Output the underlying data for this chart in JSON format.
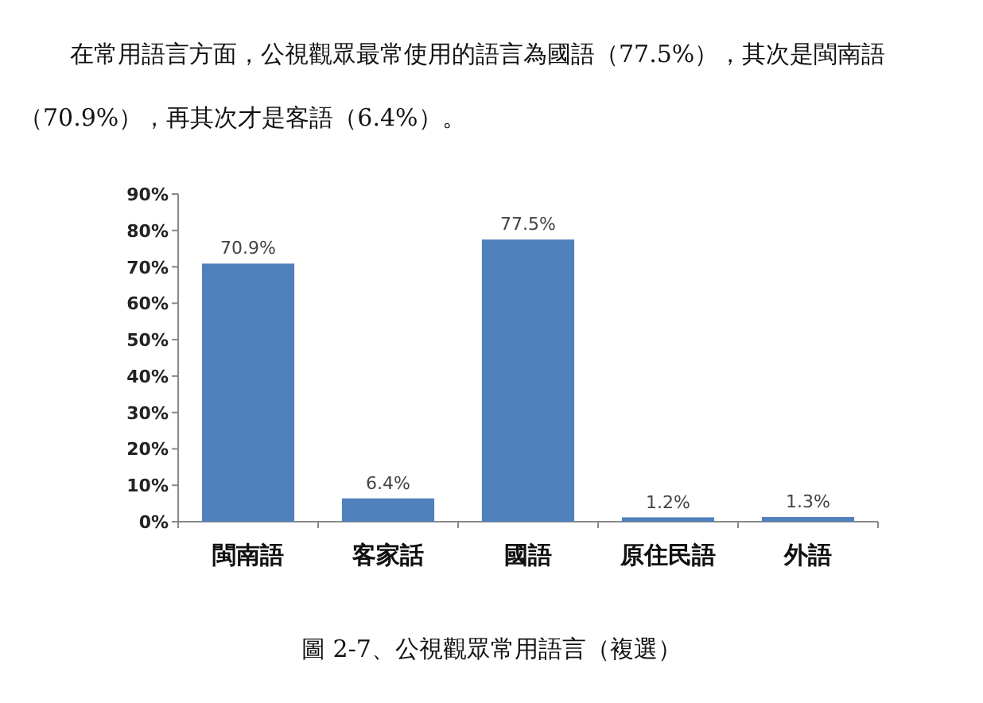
{
  "chart_data": {
    "type": "bar",
    "title": "圖 2-7、公視觀眾常用語言（複選）",
    "annotations": [
      "在常用語言方面，公視觀眾最常使用的語言為國語（77.5%），其次是閩南語（70.9%），再其次才是客語（6.4%）。"
    ],
    "categories": [
      "閩南語",
      "客家話",
      "國語",
      "原住民語",
      "外語"
    ],
    "values": [
      70.9,
      6.4,
      77.5,
      1.2,
      1.3
    ],
    "value_labels": [
      "70.9%",
      "6.4%",
      "77.5%",
      "1.2%",
      "1.3%"
    ],
    "color": "#4f81bd",
    "ylim": [
      0,
      90
    ],
    "yticks": [
      {
        "value": 0,
        "label": "0%"
      },
      {
        "value": 10,
        "label": "10%"
      },
      {
        "value": 20,
        "label": "20%"
      },
      {
        "value": 30,
        "label": "30%"
      },
      {
        "value": 40,
        "label": "40%"
      },
      {
        "value": 50,
        "label": "50%"
      },
      {
        "value": 60,
        "label": "60%"
      },
      {
        "value": 70,
        "label": "70%"
      },
      {
        "value": 80,
        "label": "80%"
      },
      {
        "value": 90,
        "label": "90%"
      }
    ]
  }
}
